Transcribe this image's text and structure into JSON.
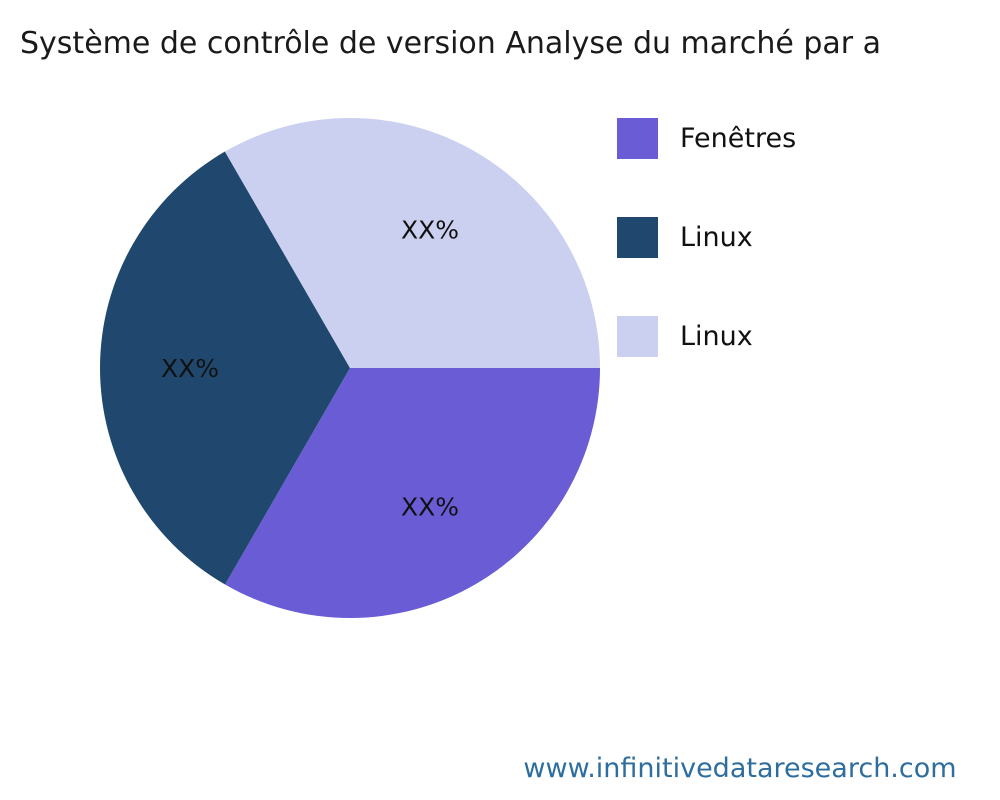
{
  "title": "Système de contrôle de version Analyse du marché par a",
  "footer": {
    "website": "www.infinitivedataresearch.com",
    "color": "#2e6e9e"
  },
  "chart_data": {
    "type": "pie",
    "title": "Système de contrôle de version Analyse du marché par a",
    "legend_position": "right",
    "start_angle_deg": 0,
    "direction": "clockwise",
    "slices": [
      {
        "label": "Fenêtres",
        "value": 33.33,
        "display_value": "XX%",
        "color": "#695cd5"
      },
      {
        "label": "Linux",
        "value": 33.33,
        "display_value": "XX%",
        "color": "#20486e"
      },
      {
        "label": "Linux",
        "value": 33.34,
        "display_value": "XX%",
        "color": "#ccd0f0"
      }
    ]
  }
}
